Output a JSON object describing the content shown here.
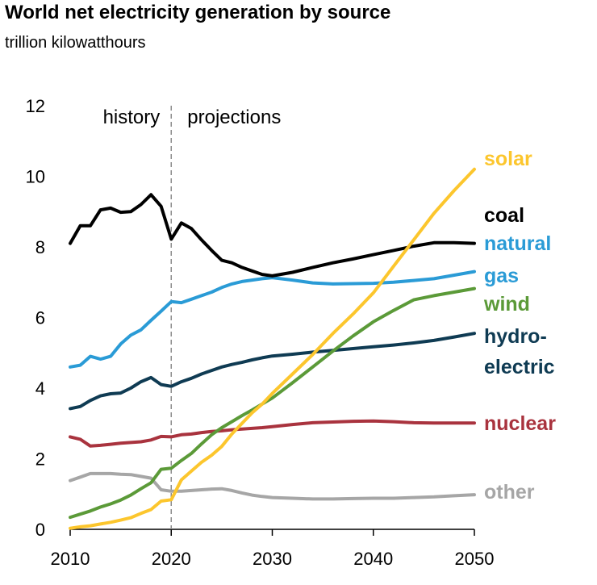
{
  "chart_data": {
    "type": "line",
    "title": "World net electricity generation by source",
    "subtitle": "trillion kilowatthours",
    "xlim": [
      2010,
      2050
    ],
    "ylim": [
      0,
      12
    ],
    "x_ticks": [
      "2010",
      "2020",
      "2030",
      "2040",
      "2050"
    ],
    "y_ticks": [
      "0",
      "2",
      "4",
      "6",
      "8",
      "10",
      "12"
    ],
    "divider_x": 2020,
    "period_labels": {
      "history": "history",
      "projections": "projections"
    },
    "legend_placement": "right-side labels at line ends",
    "grid": false,
    "series": [
      {
        "name": "solar",
        "color": "#fcc62d",
        "x": [
          2010,
          2011,
          2012,
          2013,
          2014,
          2015,
          2016,
          2017,
          2018,
          2019,
          2020,
          2021,
          2022,
          2023,
          2024,
          2025,
          2026,
          2027,
          2028,
          2029,
          2030,
          2032,
          2034,
          2036,
          2038,
          2040,
          2042,
          2044,
          2046,
          2048,
          2050
        ],
        "values": [
          0.03,
          0.07,
          0.1,
          0.15,
          0.2,
          0.26,
          0.33,
          0.45,
          0.56,
          0.8,
          0.84,
          1.4,
          1.65,
          1.9,
          2.1,
          2.35,
          2.7,
          3.0,
          3.3,
          3.55,
          3.85,
          4.4,
          4.95,
          5.55,
          6.1,
          6.7,
          7.45,
          8.2,
          8.95,
          9.6,
          10.2
        ]
      },
      {
        "name": "coal",
        "color": "#000000",
        "x": [
          2010,
          2011,
          2012,
          2013,
          2014,
          2015,
          2016,
          2017,
          2018,
          2019,
          2020,
          2021,
          2022,
          2023,
          2024,
          2025,
          2026,
          2027,
          2028,
          2029,
          2030,
          2032,
          2034,
          2036,
          2038,
          2040,
          2042,
          2044,
          2046,
          2048,
          2050
        ],
        "values": [
          8.1,
          8.6,
          8.6,
          9.05,
          9.1,
          8.98,
          9.0,
          9.2,
          9.48,
          9.15,
          8.22,
          8.68,
          8.52,
          8.2,
          7.9,
          7.62,
          7.55,
          7.42,
          7.32,
          7.22,
          7.18,
          7.28,
          7.42,
          7.55,
          7.66,
          7.78,
          7.9,
          8.02,
          8.12,
          8.12,
          8.1
        ]
      },
      {
        "name": "natural gas",
        "color": "#2a9bd6",
        "labels": [
          "natural",
          "gas"
        ],
        "x": [
          2010,
          2011,
          2012,
          2013,
          2014,
          2015,
          2016,
          2017,
          2018,
          2019,
          2020,
          2021,
          2022,
          2023,
          2024,
          2025,
          2026,
          2027,
          2028,
          2029,
          2030,
          2032,
          2034,
          2036,
          2038,
          2040,
          2042,
          2044,
          2046,
          2048,
          2050
        ],
        "values": [
          4.6,
          4.65,
          4.9,
          4.82,
          4.9,
          5.25,
          5.5,
          5.65,
          5.92,
          6.18,
          6.45,
          6.42,
          6.52,
          6.62,
          6.72,
          6.85,
          6.95,
          7.02,
          7.06,
          7.1,
          7.13,
          7.06,
          6.98,
          6.95,
          6.96,
          6.97,
          7.0,
          7.05,
          7.1,
          7.2,
          7.3
        ]
      },
      {
        "name": "wind",
        "color": "#5b9a38",
        "x": [
          2010,
          2011,
          2012,
          2013,
          2014,
          2015,
          2016,
          2017,
          2018,
          2019,
          2020,
          2021,
          2022,
          2023,
          2024,
          2025,
          2026,
          2027,
          2028,
          2029,
          2030,
          2032,
          2034,
          2036,
          2038,
          2040,
          2042,
          2044,
          2046,
          2048,
          2050
        ],
        "values": [
          0.34,
          0.43,
          0.52,
          0.63,
          0.72,
          0.83,
          0.97,
          1.15,
          1.32,
          1.7,
          1.73,
          1.95,
          2.15,
          2.42,
          2.68,
          2.88,
          3.05,
          3.22,
          3.38,
          3.55,
          3.72,
          4.15,
          4.6,
          5.05,
          5.48,
          5.88,
          6.2,
          6.5,
          6.62,
          6.72,
          6.82
        ]
      },
      {
        "name": "hydroelectric",
        "color": "#0f3b53",
        "labels": [
          "hydro-",
          "electric"
        ],
        "x": [
          2010,
          2011,
          2012,
          2013,
          2014,
          2015,
          2016,
          2017,
          2018,
          2019,
          2020,
          2021,
          2022,
          2023,
          2024,
          2025,
          2026,
          2027,
          2028,
          2029,
          2030,
          2032,
          2034,
          2036,
          2038,
          2040,
          2042,
          2044,
          2046,
          2048,
          2050
        ],
        "values": [
          3.42,
          3.48,
          3.65,
          3.78,
          3.84,
          3.86,
          4.0,
          4.18,
          4.3,
          4.1,
          4.05,
          4.18,
          4.28,
          4.4,
          4.5,
          4.6,
          4.67,
          4.73,
          4.8,
          4.86,
          4.91,
          4.96,
          5.02,
          5.07,
          5.12,
          5.17,
          5.22,
          5.28,
          5.35,
          5.45,
          5.55
        ]
      },
      {
        "name": "nuclear",
        "color": "#a9333e",
        "x": [
          2010,
          2011,
          2012,
          2013,
          2014,
          2015,
          2016,
          2017,
          2018,
          2019,
          2020,
          2021,
          2022,
          2023,
          2024,
          2025,
          2026,
          2027,
          2028,
          2029,
          2030,
          2032,
          2034,
          2036,
          2038,
          2040,
          2042,
          2044,
          2046,
          2048,
          2050
        ],
        "values": [
          2.62,
          2.55,
          2.36,
          2.38,
          2.41,
          2.44,
          2.46,
          2.48,
          2.53,
          2.63,
          2.62,
          2.68,
          2.7,
          2.74,
          2.77,
          2.79,
          2.82,
          2.84,
          2.86,
          2.88,
          2.91,
          2.97,
          3.02,
          3.04,
          3.06,
          3.07,
          3.05,
          3.02,
          3.01,
          3.01,
          3.01
        ]
      },
      {
        "name": "other",
        "color": "#a6a6a6",
        "x": [
          2010,
          2011,
          2012,
          2013,
          2014,
          2015,
          2016,
          2017,
          2018,
          2019,
          2020,
          2021,
          2022,
          2023,
          2024,
          2025,
          2026,
          2027,
          2028,
          2029,
          2030,
          2032,
          2034,
          2036,
          2038,
          2040,
          2042,
          2044,
          2046,
          2048,
          2050
        ],
        "values": [
          1.38,
          1.48,
          1.58,
          1.58,
          1.58,
          1.56,
          1.55,
          1.5,
          1.45,
          1.12,
          1.08,
          1.08,
          1.1,
          1.12,
          1.14,
          1.15,
          1.1,
          1.03,
          0.97,
          0.93,
          0.9,
          0.88,
          0.86,
          0.86,
          0.87,
          0.88,
          0.88,
          0.9,
          0.92,
          0.95,
          0.98
        ]
      }
    ]
  }
}
